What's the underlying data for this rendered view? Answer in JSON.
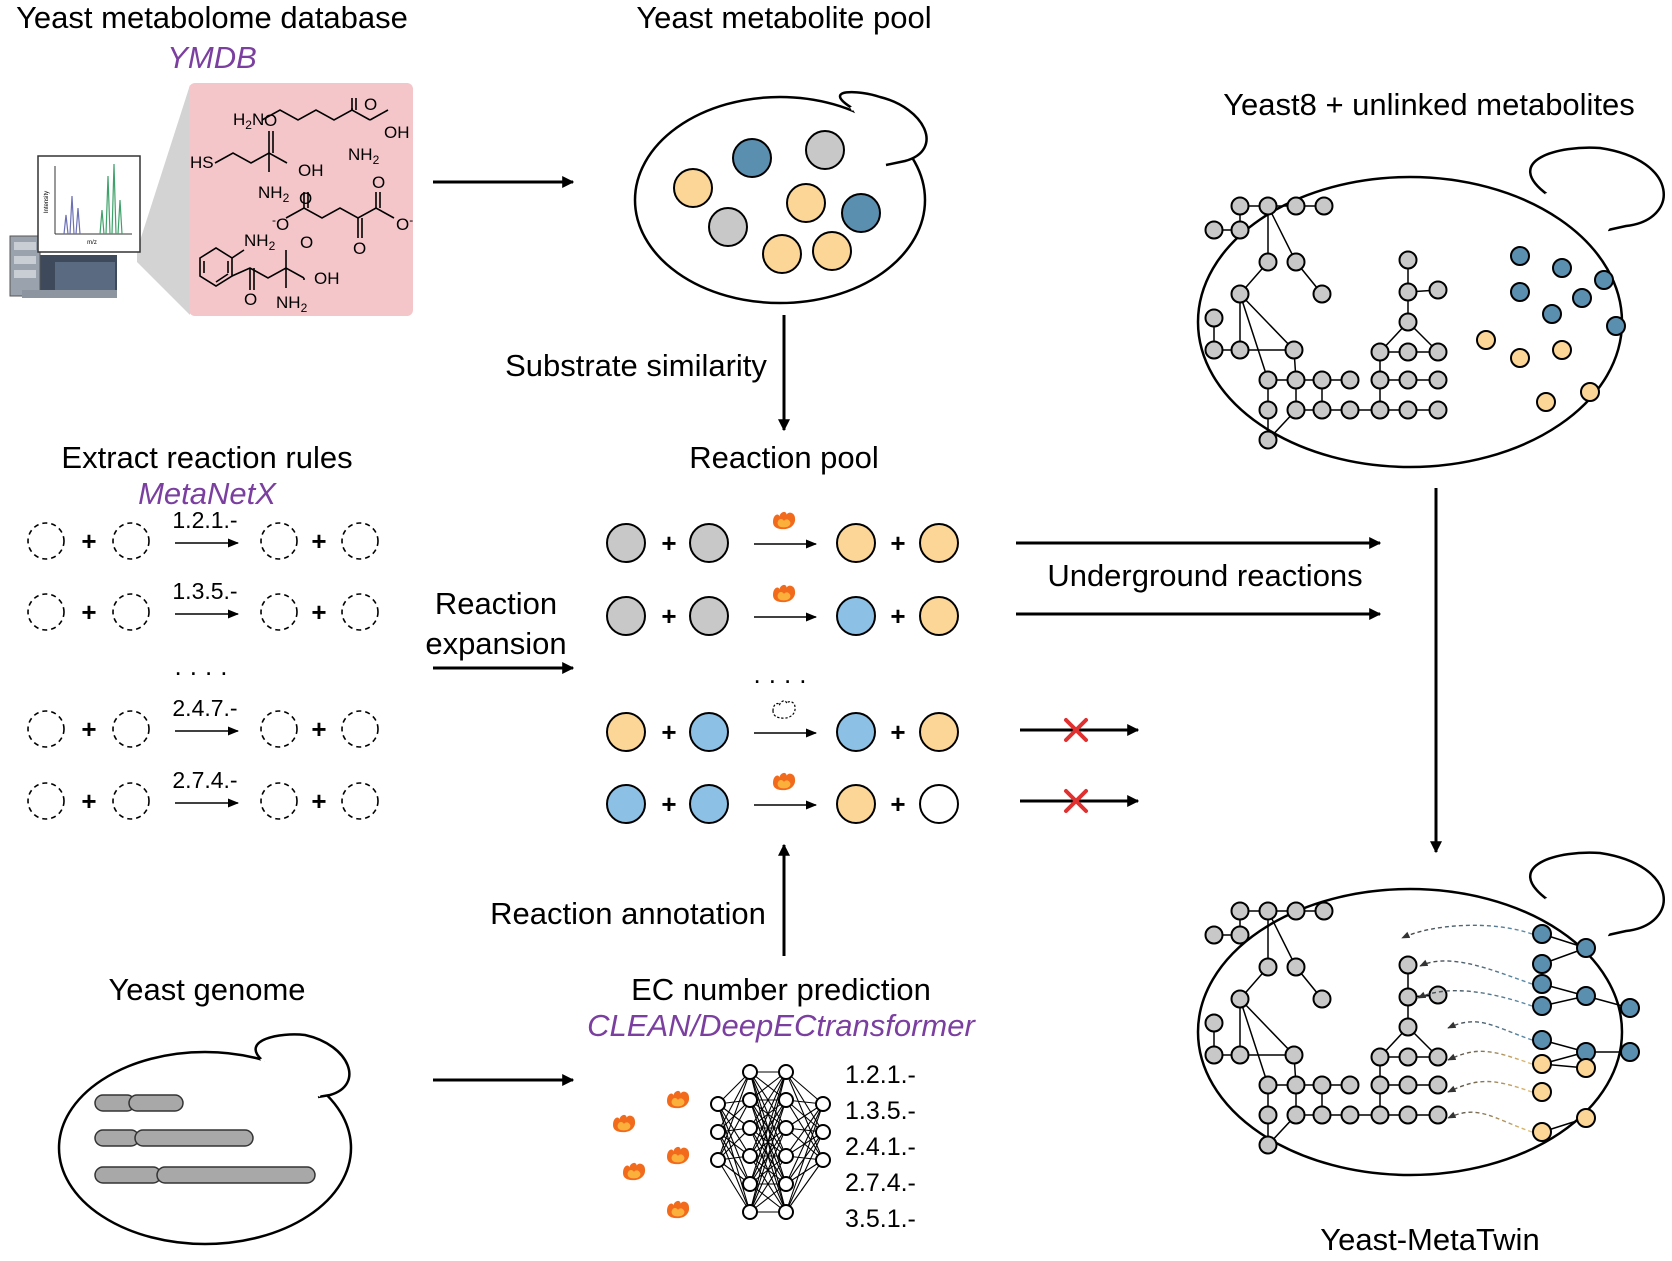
{
  "colors": {
    "gray_node": "#c8c8c8",
    "blue_node": "#5b8fb0",
    "light_blue_node": "#8cc0e4",
    "yellow_node": "#fbd697",
    "red_x": "#e03030",
    "source_purple": "#7b3fa0",
    "pink_panel": "#f4c6ca"
  },
  "top_left": {
    "title": "Yeast metabolome database",
    "source": "YMDB",
    "chem": {
      "h2n": "H2N",
      "oh": "OH",
      "nh2": "NH2",
      "hs": "HS",
      "o": "O",
      "o_minus": "-O",
      "o_minus_r": "O-",
      "axis_x": "m/z",
      "axis_y": "Intensity"
    }
  },
  "top_center": {
    "title": "Yeast metabolite pool"
  },
  "top_right": {
    "title": "Yeast8 + unlinked metabolites"
  },
  "arrows": {
    "substrate_similarity": "Substrate similarity",
    "reaction_expansion_1": "Reaction",
    "reaction_expansion_2": "expansion",
    "underground_reactions": "Underground reactions",
    "reaction_annotation": "Reaction annotation"
  },
  "rules": {
    "title": "Extract reaction rules",
    "source": "MetaNetX",
    "ec_labels": [
      "1.2.1.-",
      "1.3.5.-",
      "2.4.7.-",
      "2.7.4.-"
    ],
    "plus": "+",
    "ellipsis": "....",
    "icons": [
      "dashed-circle-icon",
      "plus-icon",
      "arrow-right-icon"
    ]
  },
  "reaction_pool": {
    "title": "Reaction pool",
    "ellipsis": "....",
    "plus": "+",
    "rows": [
      {
        "left": [
          "gray",
          "gray"
        ],
        "right": [
          "yellow",
          "yellow"
        ],
        "enzyme": "flame-icon",
        "outcome": "accepted"
      },
      {
        "left": [
          "gray",
          "gray"
        ],
        "right": [
          "light_blue",
          "yellow"
        ],
        "enzyme": "flame-icon",
        "outcome": "accepted"
      },
      {
        "left": [
          "yellow",
          "light_blue"
        ],
        "right": [
          "light_blue",
          "yellow"
        ],
        "enzyme": "dashed-flame-icon",
        "outcome": "rejected"
      },
      {
        "left": [
          "light_blue",
          "light_blue"
        ],
        "right": [
          "yellow",
          "white"
        ],
        "enzyme": "flame-icon",
        "outcome": "rejected"
      }
    ]
  },
  "genome": {
    "title": "Yeast genome"
  },
  "ec_prediction": {
    "title": "EC number prediction",
    "source": "CLEAN/DeepECtransformer",
    "ec_list": [
      "1.2.1.-",
      "1.3.5.-",
      "2.4.1.-",
      "2.7.4.-",
      "3.5.1.-"
    ],
    "icons": [
      "flame-icon",
      "neural-network-icon"
    ]
  },
  "metatwin": {
    "title": "Yeast-MetaTwin"
  }
}
